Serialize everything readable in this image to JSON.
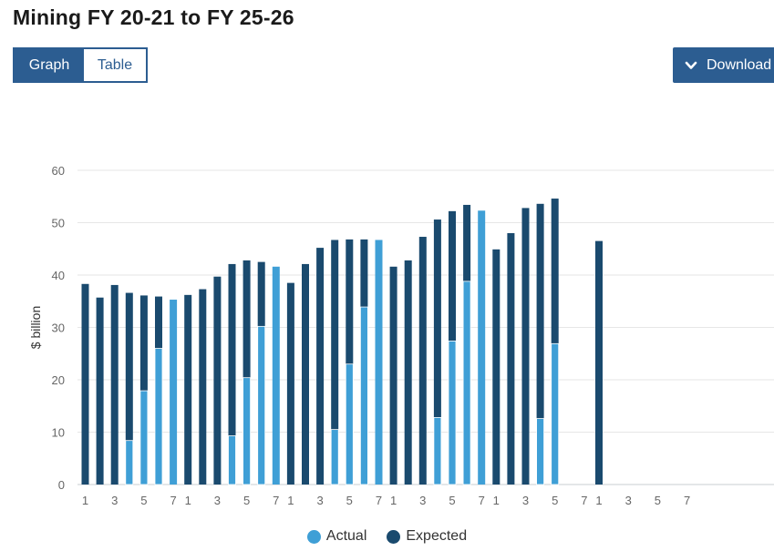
{
  "page": {
    "title": "Mining FY 20-21 to FY 25-26",
    "tabs": [
      {
        "label": "Graph",
        "active": true
      },
      {
        "label": "Table",
        "active": false
      }
    ],
    "download_label": "Download"
  },
  "colors": {
    "actual": "#3f9fd6",
    "expected": "#1a4a6e",
    "accent": "#2c5d91"
  },
  "chart_data": {
    "type": "bar",
    "ylabel": "$ billion",
    "ylim": [
      0,
      60
    ],
    "yticks": [
      0,
      10,
      20,
      30,
      40,
      50,
      60
    ],
    "grid": true,
    "legend_position": "bottom",
    "legend": [
      "Actual",
      "Expected"
    ],
    "groups": [
      {
        "slots": [
          "1",
          "2",
          "3",
          "4",
          "5",
          "6",
          "7"
        ],
        "expected": [
          38.3,
          35.7,
          38.1,
          36.6,
          36.1,
          35.9,
          null
        ],
        "actual": [
          null,
          null,
          null,
          8.4,
          17.9,
          26.0,
          35.3
        ]
      },
      {
        "slots": [
          "1",
          "2",
          "3",
          "4",
          "5",
          "6",
          "7"
        ],
        "expected": [
          36.2,
          37.3,
          39.7,
          42.1,
          42.8,
          42.5,
          null
        ],
        "actual": [
          null,
          null,
          null,
          9.3,
          20.4,
          30.2,
          41.6
        ]
      },
      {
        "slots": [
          "1",
          "2",
          "3",
          "4",
          "5",
          "6",
          "7"
        ],
        "expected": [
          38.5,
          42.1,
          45.2,
          46.7,
          46.8,
          46.8,
          null
        ],
        "actual": [
          null,
          null,
          null,
          10.5,
          23.0,
          33.9,
          46.7
        ]
      },
      {
        "slots": [
          "1",
          "2",
          "3",
          "4",
          "5",
          "6",
          "7"
        ],
        "expected": [
          41.6,
          42.8,
          47.3,
          50.6,
          52.2,
          53.4,
          null
        ],
        "actual": [
          null,
          null,
          null,
          12.8,
          27.4,
          38.8,
          52.3
        ]
      },
      {
        "slots": [
          "1",
          "2",
          "3",
          "4",
          "5",
          "6",
          "7"
        ],
        "expected": [
          44.9,
          48.0,
          52.8,
          53.6,
          54.6,
          null,
          null
        ],
        "actual": [
          null,
          null,
          null,
          12.6,
          26.9,
          null,
          null
        ]
      },
      {
        "slots": [
          "1",
          "2",
          "3",
          "4",
          "5",
          "6",
          "7"
        ],
        "expected": [
          46.5,
          null,
          null,
          null,
          null,
          null,
          null
        ],
        "actual": [
          null,
          null,
          null,
          null,
          null,
          null,
          null
        ]
      }
    ]
  }
}
